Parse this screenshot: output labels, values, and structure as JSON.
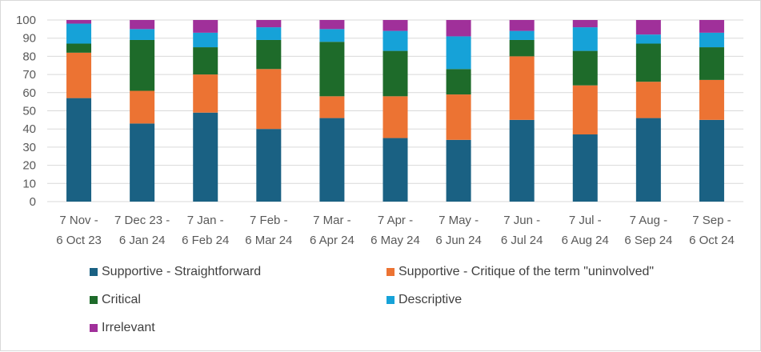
{
  "chart_data": {
    "type": "bar",
    "stacked": true,
    "title": "",
    "xlabel": "",
    "ylabel": "",
    "ylim": [
      0,
      100
    ],
    "yticks": [
      0,
      10,
      20,
      30,
      40,
      50,
      60,
      70,
      80,
      90,
      100
    ],
    "grid": true,
    "legend_position": "bottom",
    "categories": [
      [
        "7 Nov -",
        "6 Oct 23"
      ],
      [
        "7 Dec 23 -",
        "6 Jan 24"
      ],
      [
        "7 Jan -",
        "6 Feb 24"
      ],
      [
        "7 Feb -",
        "6 Mar 24"
      ],
      [
        "7 Mar -",
        "6 Apr 24"
      ],
      [
        "7 Apr -",
        "6 May 24"
      ],
      [
        "7 May -",
        "6 Jun 24"
      ],
      [
        "7 Jun -",
        "6 Jul 24"
      ],
      [
        "7 Jul -",
        "6 Aug 24"
      ],
      [
        "7 Aug -",
        "6 Sep 24"
      ],
      [
        "7 Sep -",
        "6 Oct 24"
      ]
    ],
    "series": [
      {
        "name": "Supportive - Straightforward",
        "color": "#1a6183",
        "values": [
          57,
          43,
          49,
          40,
          46,
          35,
          34,
          45,
          37,
          46,
          45
        ]
      },
      {
        "name": "Supportive - Critique of the term \"uninvolved\"",
        "color": "#ec7333",
        "values": [
          25,
          18,
          21,
          33,
          12,
          23,
          25,
          35,
          27,
          20,
          22
        ]
      },
      {
        "name": "Critical",
        "color": "#1e6b2a",
        "values": [
          5,
          28,
          15,
          16,
          30,
          25,
          14,
          9,
          19,
          21,
          18
        ]
      },
      {
        "name": "Descriptive",
        "color": "#16a2d8",
        "values": [
          11,
          6,
          8,
          7,
          7,
          11,
          18,
          5,
          13,
          5,
          8
        ]
      },
      {
        "name": "Irrelevant",
        "color": "#a0309a",
        "values": [
          2,
          5,
          7,
          4,
          5,
          6,
          9,
          6,
          4,
          8,
          7
        ]
      }
    ]
  }
}
